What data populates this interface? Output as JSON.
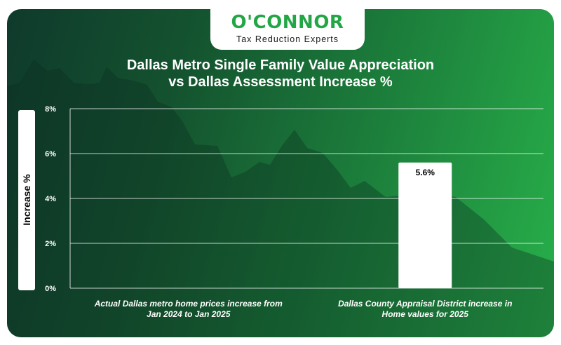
{
  "brand": {
    "name": "O'CONNOR",
    "tagline": "Tax Reduction Experts",
    "accent_color": "#23a646",
    "background_colors": [
      "#0f3a2c",
      "#28b04a"
    ]
  },
  "chart_data": {
    "type": "bar",
    "title_lines": [
      "Dallas Metro Single Family Value Appreciation",
      "vs Dallas Assessment Increase %"
    ],
    "ylabel": "Increase %",
    "xlabel": "",
    "ylim": [
      0,
      8
    ],
    "yticks": [
      0,
      2,
      4,
      6,
      8
    ],
    "ytick_labels": [
      "0%",
      "2%",
      "4%",
      "6%",
      "8%"
    ],
    "grid": true,
    "legend": "none",
    "categories": [
      "Actual Dallas metro home prices increase from\nJan 2024 to Jan 2025",
      "Dallas County Appraisal District increase in\nHome values for 2025"
    ],
    "values": [
      null,
      5.6
    ],
    "data_labels": [
      "",
      "5.6%"
    ],
    "bar_color": "#ffffff"
  }
}
